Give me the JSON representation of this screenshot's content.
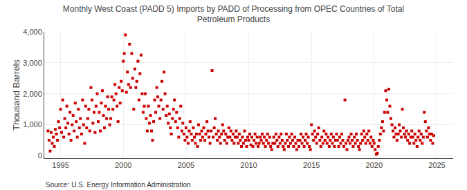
{
  "chart_data": {
    "type": "scatter",
    "title": "Monthly West Coast (PADD 5) Imports by PADD of Processing from OPEC Countries of Total\nPetroleum Products",
    "ylabel": "Thousand Barrels",
    "source": "Source: U.S. Energy Information Administration",
    "color": "#cc0000",
    "marker": "square",
    "grid": true,
    "xlim": [
      1993.7,
      2026.3
    ],
    "ylim": [
      -80,
      4000
    ],
    "xticks": [
      1995,
      2000,
      2005,
      2010,
      2015,
      2020,
      2025
    ],
    "yticks": [
      0,
      {
        "value": 1000,
        "label": "1,000"
      },
      {
        "value": 2000,
        "label": "2,000"
      },
      {
        "value": 3000,
        "label": "3,000"
      },
      {
        "value": 4000,
        "label": "4,000"
      }
    ],
    "x": [
      1994.0,
      1994.08,
      1994.17,
      1994.25,
      1994.33,
      1994.42,
      1994.5,
      1994.58,
      1994.67,
      1994.75,
      1994.83,
      1994.92,
      1995.0,
      1995.08,
      1995.17,
      1995.25,
      1995.33,
      1995.42,
      1995.5,
      1995.58,
      1995.67,
      1995.75,
      1995.83,
      1995.92,
      1996.0,
      1996.08,
      1996.17,
      1996.25,
      1996.33,
      1996.42,
      1996.5,
      1996.58,
      1996.67,
      1996.75,
      1996.83,
      1996.92,
      1997.0,
      1997.08,
      1997.17,
      1997.25,
      1997.33,
      1997.42,
      1997.5,
      1997.58,
      1997.67,
      1997.75,
      1997.83,
      1997.92,
      1998.0,
      1998.08,
      1998.17,
      1998.25,
      1998.33,
      1998.42,
      1998.5,
      1998.58,
      1998.67,
      1998.75,
      1998.83,
      1998.92,
      1999.0,
      1999.08,
      1999.17,
      1999.25,
      1999.33,
      1999.42,
      1999.5,
      1999.58,
      1999.67,
      1999.75,
      1999.83,
      1999.92,
      2000.0,
      2000.08,
      2000.17,
      2000.25,
      2000.33,
      2000.42,
      2000.5,
      2000.58,
      2000.67,
      2000.75,
      2000.83,
      2000.92,
      2001.0,
      2001.08,
      2001.17,
      2001.25,
      2001.33,
      2001.42,
      2001.5,
      2001.58,
      2001.67,
      2001.75,
      2001.83,
      2001.92,
      2002.0,
      2002.08,
      2002.17,
      2002.25,
      2002.33,
      2002.42,
      2002.5,
      2002.58,
      2002.67,
      2002.75,
      2002.83,
      2002.92,
      2003.0,
      2003.08,
      2003.17,
      2003.25,
      2003.33,
      2003.42,
      2003.5,
      2003.58,
      2003.67,
      2003.75,
      2003.83,
      2003.92,
      2004.0,
      2004.08,
      2004.17,
      2004.25,
      2004.33,
      2004.42,
      2004.5,
      2004.58,
      2004.67,
      2004.75,
      2004.83,
      2004.92,
      2005.0,
      2005.08,
      2005.17,
      2005.25,
      2005.33,
      2005.42,
      2005.5,
      2005.58,
      2005.67,
      2005.75,
      2005.83,
      2005.92,
      2006.0,
      2006.08,
      2006.17,
      2006.25,
      2006.33,
      2006.42,
      2006.5,
      2006.58,
      2006.67,
      2006.75,
      2006.83,
      2006.92,
      2007.0,
      2007.08,
      2007.17,
      2007.25,
      2007.33,
      2007.42,
      2007.5,
      2007.58,
      2007.67,
      2007.75,
      2007.83,
      2007.92,
      2008.0,
      2008.08,
      2008.17,
      2008.25,
      2008.33,
      2008.42,
      2008.5,
      2008.58,
      2008.67,
      2008.75,
      2008.83,
      2008.92,
      2009.0,
      2009.08,
      2009.17,
      2009.25,
      2009.33,
      2009.42,
      2009.5,
      2009.58,
      2009.67,
      2009.75,
      2009.83,
      2009.92,
      2010.0,
      2010.08,
      2010.17,
      2010.25,
      2010.33,
      2010.42,
      2010.5,
      2010.58,
      2010.67,
      2010.75,
      2010.83,
      2010.92,
      2011.0,
      2011.08,
      2011.17,
      2011.25,
      2011.33,
      2011.42,
      2011.5,
      2011.58,
      2011.67,
      2011.75,
      2011.83,
      2011.92,
      2012.0,
      2012.08,
      2012.17,
      2012.25,
      2012.33,
      2012.42,
      2012.5,
      2012.58,
      2012.67,
      2012.75,
      2012.83,
      2012.92,
      2013.0,
      2013.08,
      2013.17,
      2013.25,
      2013.33,
      2013.42,
      2013.5,
      2013.58,
      2013.67,
      2013.75,
      2013.83,
      2013.92,
      2014.0,
      2014.08,
      2014.17,
      2014.25,
      2014.33,
      2014.42,
      2014.5,
      2014.58,
      2014.67,
      2014.75,
      2014.83,
      2014.92,
      2015.0,
      2015.08,
      2015.17,
      2015.25,
      2015.33,
      2015.42,
      2015.5,
      2015.58,
      2015.67,
      2015.75,
      2015.83,
      2015.92,
      2016.0,
      2016.08,
      2016.17,
      2016.25,
      2016.33,
      2016.42,
      2016.5,
      2016.58,
      2016.67,
      2016.75,
      2016.83,
      2016.92,
      2017.0,
      2017.08,
      2017.17,
      2017.25,
      2017.33,
      2017.42,
      2017.5,
      2017.58,
      2017.67,
      2017.75,
      2017.83,
      2017.92,
      2018.0,
      2018.08,
      2018.17,
      2018.25,
      2018.33,
      2018.42,
      2018.5,
      2018.58,
      2018.67,
      2018.75,
      2018.83,
      2018.92,
      2019.0,
      2019.08,
      2019.17,
      2019.25,
      2019.33,
      2019.42,
      2019.5,
      2019.58,
      2019.67,
      2019.75,
      2019.83,
      2019.92,
      2020.0,
      2020.08,
      2020.17,
      2020.25,
      2020.33,
      2020.42,
      2020.5,
      2020.58,
      2020.67,
      2020.75,
      2020.83,
      2020.92,
      2021.0,
      2021.08,
      2021.17,
      2021.25,
      2021.33,
      2021.42,
      2021.5,
      2021.58,
      2021.67,
      2021.75,
      2021.83,
      2021.92,
      2022.0,
      2022.08,
      2022.17,
      2022.25,
      2022.33,
      2022.42,
      2022.5,
      2022.58,
      2022.67,
      2022.75,
      2022.83,
      2022.92,
      2023.0,
      2023.08,
      2023.17,
      2023.25,
      2023.33,
      2023.42,
      2023.5,
      2023.58,
      2023.67,
      2023.75,
      2023.83,
      2023.92,
      2024.0,
      2024.08,
      2024.17,
      2024.25,
      2024.33,
      2024.42,
      2024.5,
      2024.58,
      2024.67,
      2024.75
    ],
    "values": [
      800,
      500,
      150,
      750,
      400,
      600,
      300,
      850,
      700,
      500,
      1100,
      900,
      1500,
      750,
      1800,
      600,
      1200,
      900,
      1600,
      1050,
      700,
      1400,
      500,
      1000,
      1300,
      800,
      1700,
      1100,
      600,
      1500,
      900,
      1200,
      700,
      1800,
      1000,
      400,
      1600,
      900,
      1200,
      1500,
      800,
      2200,
      1800,
      1050,
      1400,
      750,
      1600,
      2000,
      1100,
      1400,
      800,
      1700,
      2100,
      1300,
      900,
      1600,
      1200,
      1900,
      1500,
      1000,
      1200,
      1900,
      1500,
      1800,
      2300,
      2000,
      1600,
      1100,
      2200,
      1700,
      2400,
      2100,
      3050,
      3300,
      3900,
      2050,
      2700,
      2300,
      3600,
      2200,
      3300,
      2500,
      1500,
      2800,
      2200,
      2400,
      3050,
      1800,
      2650,
      3250,
      2000,
      1400,
      1600,
      2000,
      1200,
      800,
      1600,
      1050,
      1300,
      800,
      500,
      1100,
      1800,
      1400,
      2200,
      1900,
      1600,
      1200,
      1800,
      2400,
      1500,
      2700,
      2000,
      1300,
      1600,
      1050,
      1350,
      900,
      700,
      1200,
      1500,
      1800,
      1100,
      1400,
      900,
      600,
      1200,
      1600,
      800,
      1050,
      700,
      500,
      900,
      600,
      400,
      800,
      1100,
      700,
      500,
      900,
      600,
      400,
      700,
      300,
      1000,
      700,
      500,
      800,
      600,
      900,
      500,
      700,
      1100,
      800,
      600,
      400,
      800,
      2750,
      600,
      900,
      1200,
      700,
      500,
      800,
      600,
      400,
      700,
      1000,
      800,
      500,
      700,
      400,
      600,
      900,
      600,
      800,
      500,
      700,
      400,
      600,
      800,
      600,
      400,
      700,
      500,
      300,
      600,
      400,
      800,
      500,
      300,
      600,
      500,
      700,
      350,
      600,
      300,
      500,
      700,
      400,
      600,
      300,
      400,
      600,
      500,
      700,
      400,
      600,
      300,
      500,
      700,
      400,
      600,
      300,
      200,
      400,
      600,
      400,
      700,
      500,
      300,
      600,
      400,
      700,
      500,
      300,
      200,
      400,
      700,
      500,
      300,
      600,
      400,
      700,
      500,
      300,
      600,
      400,
      200,
      500,
      300,
      500,
      700,
      400,
      600,
      300,
      500,
      700,
      400,
      600,
      300,
      200,
      1000,
      700,
      500,
      800,
      600,
      400,
      700,
      900,
      500,
      300,
      600,
      400,
      800,
      500,
      700,
      400,
      600,
      300,
      500,
      700,
      400,
      600,
      300,
      500,
      700,
      500,
      300,
      600,
      400,
      700,
      500,
      300,
      1800,
      400,
      200,
      500,
      600,
      400,
      700,
      500,
      300,
      600,
      400,
      700,
      500,
      300,
      200,
      400,
      700,
      500,
      800,
      600,
      400,
      700,
      500,
      800,
      400,
      600,
      300,
      500,
      400,
      200,
      50,
      80,
      300,
      500,
      700,
      900,
      1100,
      800,
      1400,
      2100,
      1800,
      1400,
      2150,
      1600,
      1200,
      1000,
      800,
      600,
      900,
      700,
      500,
      700,
      1000,
      800,
      600,
      1500,
      900,
      700,
      600,
      800,
      500,
      700,
      400,
      600,
      800,
      600,
      400,
      700,
      500,
      300,
      600,
      800,
      500,
      700,
      400,
      600,
      1400,
      1100,
      800,
      600,
      900,
      700,
      500,
      700,
      400,
      650
    ]
  }
}
